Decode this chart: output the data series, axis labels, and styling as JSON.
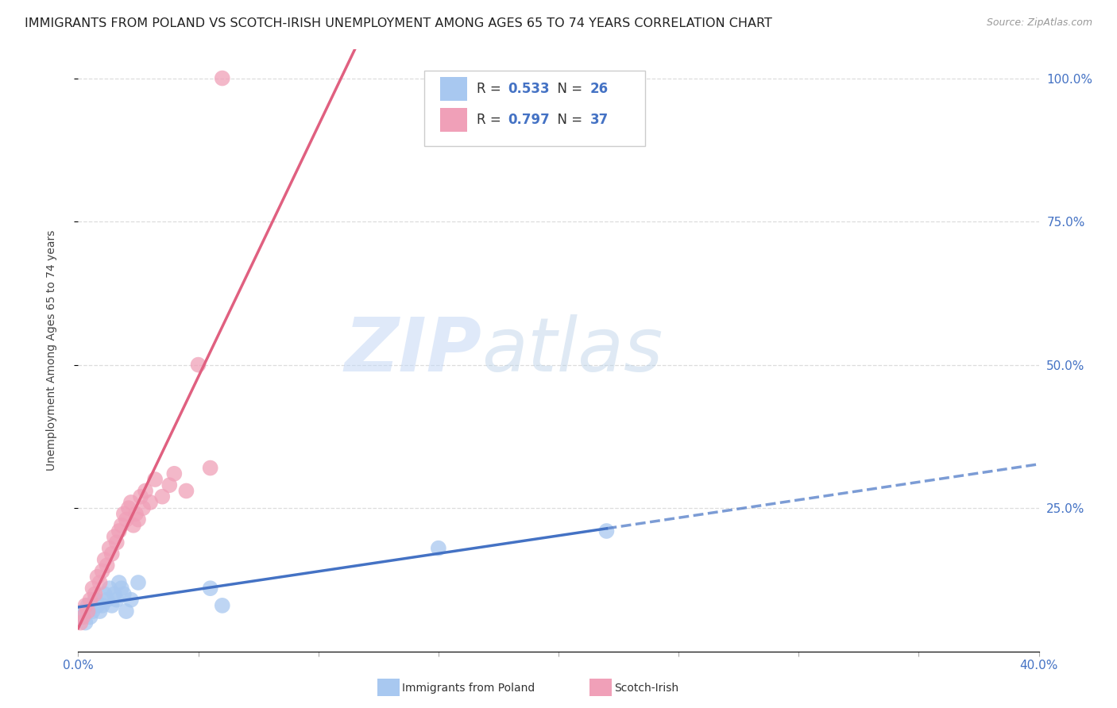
{
  "title": "IMMIGRANTS FROM POLAND VS SCOTCH-IRISH UNEMPLOYMENT AMONG AGES 65 TO 74 YEARS CORRELATION CHART",
  "source": "Source: ZipAtlas.com",
  "ylabel": "Unemployment Among Ages 65 to 74 years",
  "right_yticks": [
    "100.0%",
    "75.0%",
    "50.0%",
    "25.0%"
  ],
  "right_ytick_vals": [
    1.0,
    0.75,
    0.5,
    0.25
  ],
  "poland_R": "0.533",
  "poland_N": "26",
  "scotch_R": "0.797",
  "scotch_N": "37",
  "poland_color": "#a8c8f0",
  "scotch_color": "#f0a0b8",
  "poland_line_color": "#4472c4",
  "scotch_line_color": "#e06080",
  "legend_text_color": "#4472c4",
  "watermark_zip": "ZIP",
  "watermark_atlas": "atlas",
  "poland_x": [
    0.001,
    0.002,
    0.003,
    0.004,
    0.005,
    0.006,
    0.007,
    0.008,
    0.009,
    0.01,
    0.011,
    0.012,
    0.013,
    0.014,
    0.015,
    0.016,
    0.017,
    0.018,
    0.019,
    0.02,
    0.022,
    0.025,
    0.055,
    0.06,
    0.15,
    0.22
  ],
  "poland_y": [
    0.06,
    0.07,
    0.05,
    0.08,
    0.06,
    0.07,
    0.09,
    0.08,
    0.07,
    0.08,
    0.1,
    0.09,
    0.11,
    0.08,
    0.1,
    0.09,
    0.12,
    0.11,
    0.1,
    0.07,
    0.09,
    0.12,
    0.11,
    0.08,
    0.18,
    0.21
  ],
  "scotch_x": [
    0.001,
    0.002,
    0.003,
    0.004,
    0.005,
    0.006,
    0.007,
    0.008,
    0.009,
    0.01,
    0.011,
    0.012,
    0.013,
    0.014,
    0.015,
    0.016,
    0.017,
    0.018,
    0.019,
    0.02,
    0.021,
    0.022,
    0.023,
    0.024,
    0.025,
    0.026,
    0.027,
    0.028,
    0.03,
    0.032,
    0.035,
    0.038,
    0.04,
    0.045,
    0.05,
    0.055,
    0.06
  ],
  "scotch_y": [
    0.05,
    0.06,
    0.08,
    0.07,
    0.09,
    0.11,
    0.1,
    0.13,
    0.12,
    0.14,
    0.16,
    0.15,
    0.18,
    0.17,
    0.2,
    0.19,
    0.21,
    0.22,
    0.24,
    0.23,
    0.25,
    0.26,
    0.22,
    0.24,
    0.23,
    0.27,
    0.25,
    0.28,
    0.26,
    0.3,
    0.27,
    0.29,
    0.31,
    0.28,
    0.5,
    0.32,
    1.0
  ],
  "xlim": [
    0.0,
    0.4
  ],
  "ylim": [
    0.0,
    1.05
  ],
  "grid_color": "#dddddd",
  "background_color": "#ffffff",
  "title_fontsize": 11.5,
  "source_fontsize": 9
}
